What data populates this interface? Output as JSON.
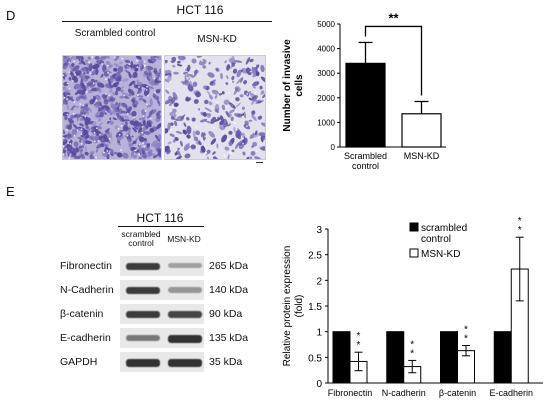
{
  "panel_d": {
    "letter": "D",
    "cell_line": "HCT 116",
    "image_labels": [
      "Scrambled control",
      "MSN-KD"
    ]
  },
  "panel_e": {
    "letter": "E",
    "cell_line": "HCT 116",
    "lane_labels": [
      "scrambled control",
      "MSN-KD"
    ],
    "blots": [
      {
        "protein": "Fibronectin",
        "size": "265 kDa",
        "band_intensity": [
          0.85,
          0.35
        ]
      },
      {
        "protein": "N-Cadherin",
        "size": "140 kDa",
        "band_intensity": [
          0.85,
          0.4
        ]
      },
      {
        "protein": "β-catenin",
        "size": "90 kDa",
        "band_intensity": [
          0.85,
          0.8
        ]
      },
      {
        "protein": "E-cadherin",
        "size": "135 kDa",
        "band_intensity": [
          0.55,
          0.9
        ]
      },
      {
        "protein": "GAPDH",
        "size": "35 kDa",
        "band_intensity": [
          0.9,
          0.9
        ]
      }
    ]
  },
  "chart_data": [
    {
      "type": "bar",
      "categories": [
        "Scrambled control",
        "MSN-KD"
      ],
      "values": [
        3400,
        1350
      ],
      "errors": [
        850,
        500
      ],
      "colors": [
        "#000000",
        "#ffffff"
      ],
      "ylabel": "Number of invasive cells",
      "ylim": [
        0,
        5000
      ],
      "yticks": [
        0,
        1000,
        2000,
        3000,
        4000,
        5000
      ],
      "significance": "**",
      "grid": false
    },
    {
      "type": "bar",
      "categories": [
        "Fibronectin",
        "N-cadherin",
        "β-catenin",
        "E-cadherin"
      ],
      "series": [
        {
          "name": "scrambled control",
          "values": [
            1,
            1,
            1,
            1
          ],
          "errors": [
            0,
            0,
            0,
            0
          ],
          "color": "#000000"
        },
        {
          "name": "MSN-KD",
          "values": [
            0.42,
            0.32,
            0.63,
            2.22
          ],
          "errors": [
            0.18,
            0.12,
            0.1,
            0.62
          ],
          "color": "#ffffff"
        }
      ],
      "significance": [
        "**",
        "**",
        "**",
        "**"
      ],
      "ylabel": "Relative protein expression (fold)",
      "ylim": [
        0,
        3
      ],
      "yticks": [
        0,
        0.5,
        1,
        1.5,
        2,
        2.5,
        3
      ],
      "legend_position": "top-left",
      "grid": false
    }
  ]
}
